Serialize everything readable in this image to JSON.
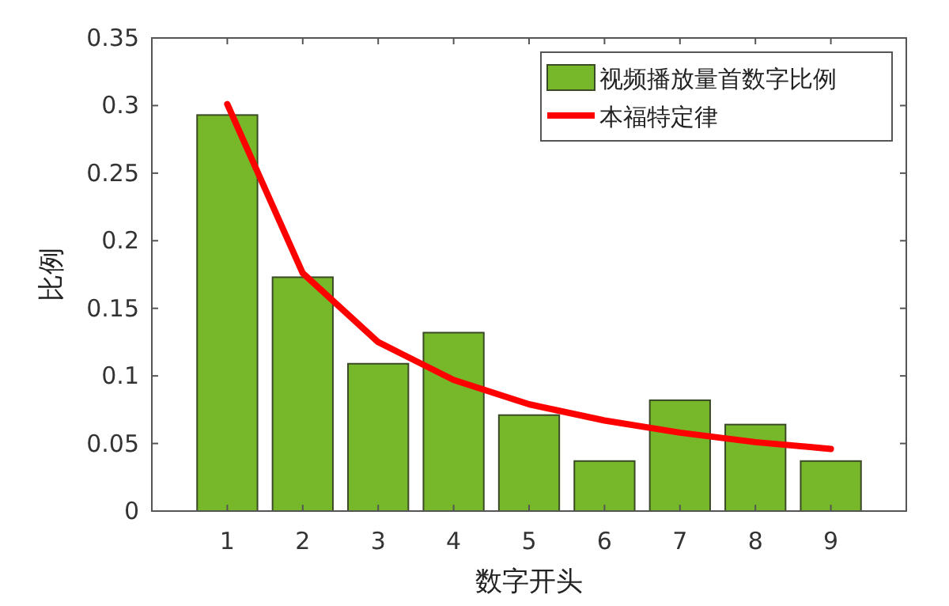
{
  "chart_data": {
    "type": "bar",
    "xlabel": "数字开头",
    "ylabel": "比例",
    "x": [
      1,
      2,
      3,
      4,
      5,
      6,
      7,
      8,
      9
    ],
    "series": [
      {
        "name": "视频播放量首数字比例",
        "color": "#77b82a",
        "values": [
          0.293,
          0.173,
          0.109,
          0.132,
          0.071,
          0.037,
          0.082,
          0.064,
          0.037
        ]
      },
      {
        "name": "本福特定律",
        "type": "line",
        "color": "#ff0000",
        "x": [
          1,
          2,
          3,
          4,
          5,
          6,
          7,
          8,
          9
        ],
        "values": [
          0.301,
          0.176,
          0.125,
          0.097,
          0.079,
          0.067,
          0.058,
          0.051,
          0.046
        ]
      }
    ],
    "xlim": [
      0,
      10
    ],
    "xticks": [
      1,
      2,
      3,
      4,
      5,
      6,
      7,
      8,
      9
    ],
    "ylim": [
      0,
      0.35
    ],
    "yticks": [
      0,
      0.05,
      0.1,
      0.15,
      0.2,
      0.25,
      0.3,
      0.35
    ],
    "grid": false,
    "legend": "top right"
  }
}
